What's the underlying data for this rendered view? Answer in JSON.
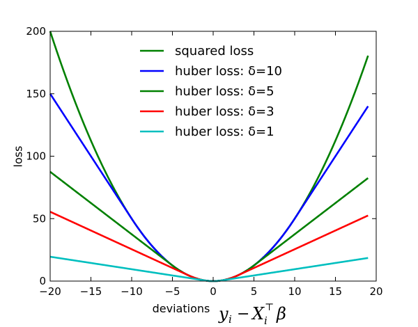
{
  "chart_data": {
    "type": "line",
    "xlabel": "deviations",
    "xlabel_math": "y_i − X_i^⊤ β",
    "ylabel": "loss",
    "xlim": [
      -20,
      20
    ],
    "ylim": [
      0,
      200
    ],
    "xticks": [
      -20,
      -15,
      -10,
      -5,
      0,
      5,
      10,
      15,
      20
    ],
    "yticks": [
      0,
      50,
      100,
      150,
      200
    ],
    "x_tick_labels": [
      "−20",
      "−15",
      "−10",
      "−5",
      "0",
      "5",
      "10",
      "15",
      "20"
    ],
    "y_tick_labels": [
      "0",
      "50",
      "100",
      "150",
      "200"
    ],
    "x_range": [
      -20,
      19
    ],
    "legend_position": "upper-center",
    "grid": false,
    "series": [
      {
        "name": "squared loss",
        "color": "#008000",
        "kind": "squared"
      },
      {
        "name": "huber loss: δ=10",
        "color": "#0000ff",
        "kind": "huber",
        "delta": 10
      },
      {
        "name": "huber loss: δ=5",
        "color": "#008000",
        "kind": "huber",
        "delta": 5
      },
      {
        "name": "huber loss: δ=3",
        "color": "#ff0000",
        "kind": "huber",
        "delta": 3
      },
      {
        "name": "huber loss: δ=1",
        "color": "#00bfbf",
        "kind": "huber",
        "delta": 1
      }
    ]
  }
}
